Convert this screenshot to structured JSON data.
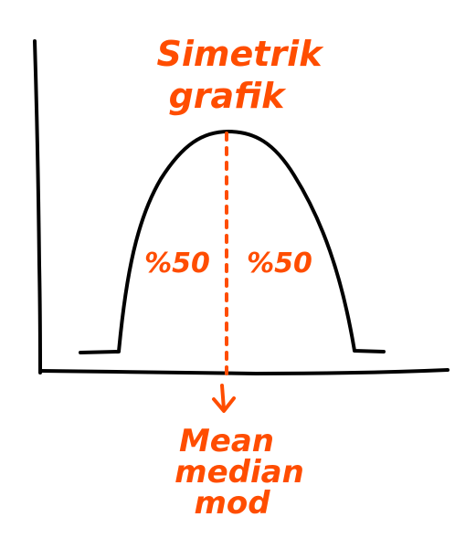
{
  "title": {
    "line1": "Simetrik",
    "line2": "grafik"
  },
  "left_area_label": "%50",
  "right_area_label": "%50",
  "center_labels": {
    "line1": "Mean",
    "line2": "median",
    "line3": "mod"
  },
  "colors": {
    "ink": "#000000",
    "annotation": "#ff4d00",
    "background": "#ffffff"
  },
  "icons": {
    "center_marker": "down-arrow-icon"
  }
}
